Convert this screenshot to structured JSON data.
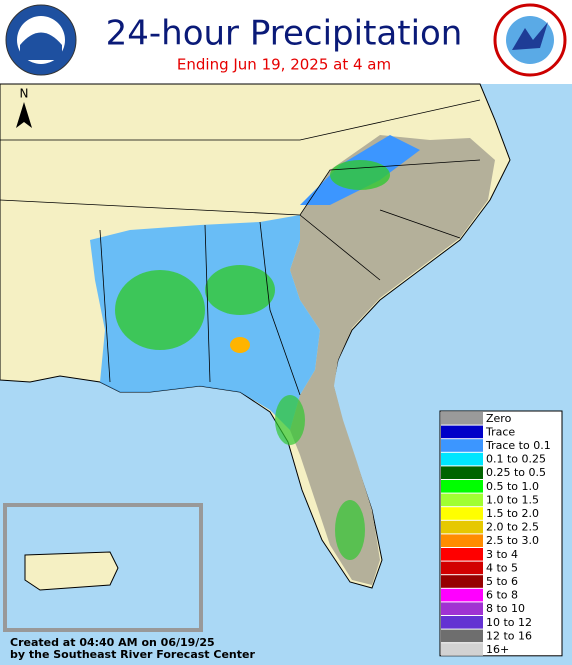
{
  "header": {
    "title": "24-hour Precipitation",
    "subtitle": "Ending  Jun 19, 2025 at  4 am"
  },
  "map": {
    "north_label": "N"
  },
  "legend": {
    "items": [
      {
        "label": "Zero",
        "color": "#9a9a9a"
      },
      {
        "label": "Trace",
        "color": "#0000c8"
      },
      {
        "label": "Trace to 0.1",
        "color": "#3c96ff"
      },
      {
        "label": "0.1 to 0.25",
        "color": "#00e6ff"
      },
      {
        "label": "0.25 to 0.5",
        "color": "#006400"
      },
      {
        "label": "0.5 to 1.0",
        "color": "#00ff00"
      },
      {
        "label": "1.0 to 1.5",
        "color": "#a0ff32"
      },
      {
        "label": "1.5 to 2.0",
        "color": "#ffff00"
      },
      {
        "label": "2.0 to 2.5",
        "color": "#e6c800"
      },
      {
        "label": "2.5 to 3.0",
        "color": "#ff8c00"
      },
      {
        "label": "3 to 4",
        "color": "#ff0000"
      },
      {
        "label": "4 to 5",
        "color": "#d20000"
      },
      {
        "label": "5 to 6",
        "color": "#960000"
      },
      {
        "label": "6 to 8",
        "color": "#ff00ff"
      },
      {
        "label": "8 to 10",
        "color": "#a032d2"
      },
      {
        "label": "10 to 12",
        "color": "#6432d2"
      },
      {
        "label": "12 to 16",
        "color": "#6e6e6e"
      },
      {
        "label": "16+",
        "color": "#d2d2d2"
      }
    ]
  },
  "footer": {
    "line1": "Created at 04:40 AM on 06/19/25",
    "line2": "by the Southeast River Forecast Center"
  }
}
